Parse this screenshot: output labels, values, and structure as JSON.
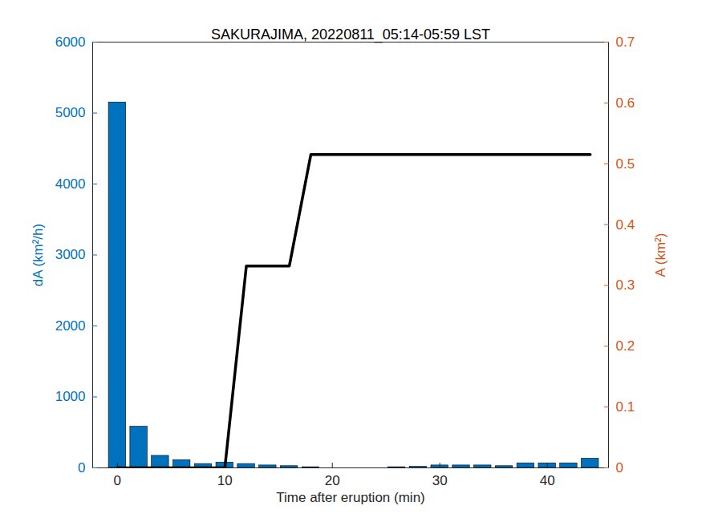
{
  "chart_data": {
    "type": "bar",
    "title": "SAKURAJIMA, 20220811_05:14-05:59 LST",
    "xlabel": "Time after eruption (min)",
    "ylabel": "dA (km²/h)",
    "y2label": "A (km²)",
    "x": [
      0,
      2,
      4,
      6,
      8,
      10,
      12,
      14,
      16,
      18,
      20,
      22,
      24,
      26,
      28,
      30,
      32,
      34,
      36,
      38,
      40,
      42,
      44
    ],
    "xlim": [
      -2.3,
      45.7
    ],
    "xticks": [
      0,
      10,
      20,
      30,
      40
    ],
    "ylim": [
      0,
      6000
    ],
    "yticks": [
      0,
      1000,
      2000,
      3000,
      4000,
      5000,
      6000
    ],
    "y2lim": [
      0,
      0.7
    ],
    "y2ticks": [
      0,
      0.1,
      0.2,
      0.3,
      0.4,
      0.5,
      0.6,
      0.7
    ],
    "series": [
      {
        "type": "bar",
        "color": "#0072BD",
        "values": [
          5150,
          580,
          170,
          110,
          55,
          75,
          55,
          35,
          25,
          10,
          0,
          0,
          0,
          10,
          15,
          35,
          35,
          35,
          25,
          65,
          65,
          65,
          130
        ]
      },
      {
        "type": "line",
        "color": "#000000",
        "axis": "y2",
        "values": [
          0,
          0,
          0,
          0,
          0,
          0,
          0.332,
          0.332,
          0.332,
          0.515,
          0.515,
          0.515,
          0.515,
          0.515,
          0.515,
          0.515,
          0.515,
          0.515,
          0.515,
          0.515,
          0.515,
          0.515,
          0.515
        ]
      }
    ]
  }
}
